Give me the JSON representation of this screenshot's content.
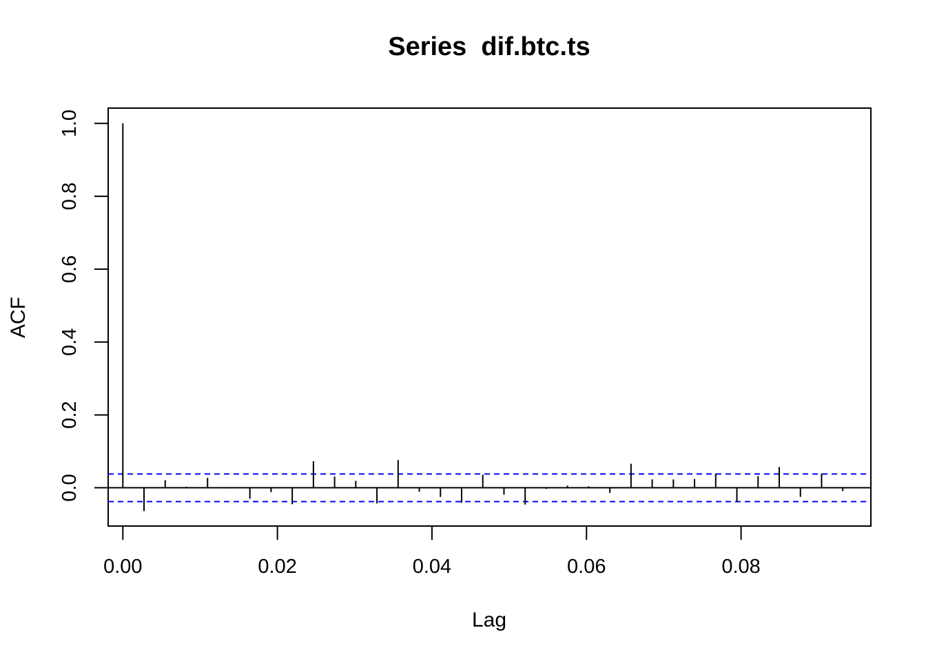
{
  "chart_data": {
    "type": "bar",
    "title": "Series  dif.btc.ts",
    "xlabel": "Lag",
    "ylabel": "ACF",
    "xlim": [
      -0.0019,
      0.0968
    ],
    "ylim": [
      -0.105,
      1.042
    ],
    "x_ticks": [
      "0.00",
      "0.02",
      "0.04",
      "0.06",
      "0.08"
    ],
    "x_tick_values": [
      0.0,
      0.02,
      0.04,
      0.06,
      0.08
    ],
    "y_ticks": [
      "0.0",
      "0.2",
      "0.4",
      "0.6",
      "0.8",
      "1.0"
    ],
    "y_tick_values": [
      0.0,
      0.2,
      0.4,
      0.6,
      0.8,
      1.0
    ],
    "lag": [
      0.0,
      0.00274,
      0.00548,
      0.00822,
      0.01096,
      0.0137,
      0.01644,
      0.01918,
      0.02192,
      0.02466,
      0.0274,
      0.03014,
      0.03288,
      0.03562,
      0.03836,
      0.0411,
      0.04384,
      0.04658,
      0.04932,
      0.05206,
      0.0548,
      0.05754,
      0.06028,
      0.06302,
      0.06576,
      0.0685,
      0.07124,
      0.07398,
      0.07672,
      0.07946,
      0.0822,
      0.08494,
      0.08768,
      0.09042,
      0.09316
    ],
    "acf": [
      1.0,
      -0.064,
      0.021,
      0.003,
      0.027,
      -0.002,
      -0.03,
      -0.012,
      -0.045,
      0.073,
      0.031,
      0.019,
      -0.043,
      0.076,
      -0.011,
      -0.025,
      -0.041,
      0.036,
      -0.019,
      -0.046,
      -0.003,
      0.006,
      0.004,
      -0.014,
      0.066,
      0.023,
      0.023,
      0.024,
      0.039,
      -0.039,
      0.032,
      0.057,
      -0.025,
      0.039,
      -0.009
    ],
    "confidence_band": [
      -0.038,
      0.038
    ],
    "band_color": "#0000ff",
    "bar_color": "#000000"
  }
}
